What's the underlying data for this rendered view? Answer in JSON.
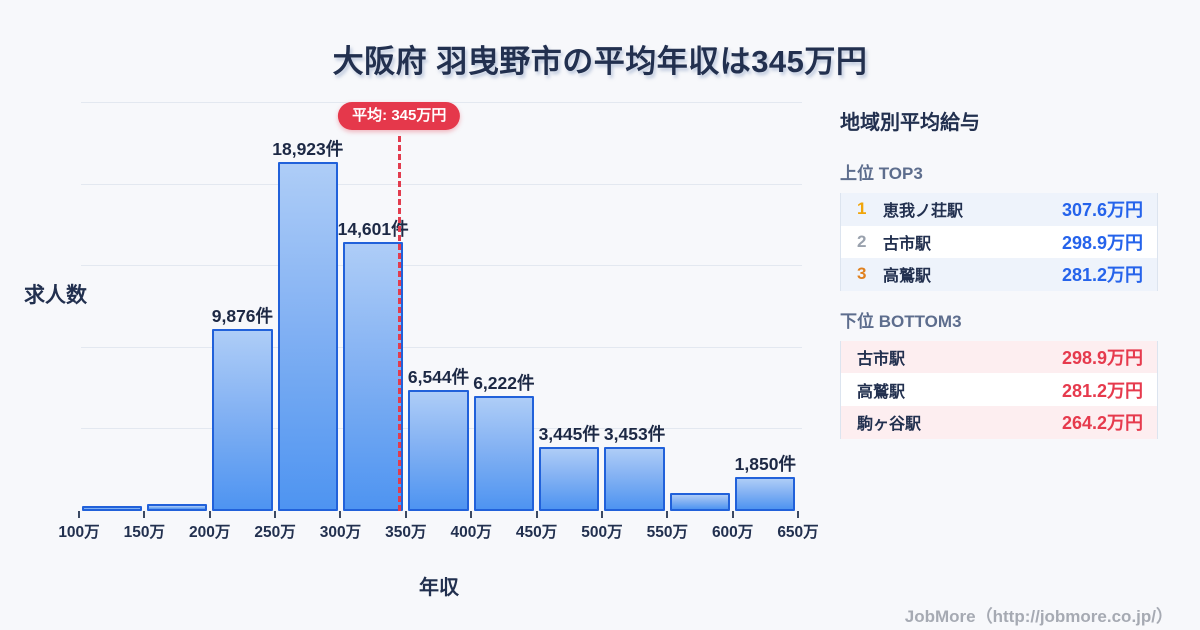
{
  "title": "大阪府 羽曳野市の平均年収は345万円",
  "chart_data": {
    "type": "bar",
    "title": "大阪府 羽曳野市の平均年収は345万円",
    "xlabel": "年収",
    "ylabel": "求人数",
    "unit": "件",
    "x_ticks": [
      "100万",
      "150万",
      "200万",
      "250万",
      "300万",
      "350万",
      "400万",
      "450万",
      "500万",
      "550万",
      "600万",
      "650万"
    ],
    "bins": [
      {
        "range": "100万-150万",
        "value": 250,
        "label": ""
      },
      {
        "range": "150万-200万",
        "value": 400,
        "label": ""
      },
      {
        "range": "200万-250万",
        "value": 9876,
        "label": "9,876件"
      },
      {
        "range": "250万-300万",
        "value": 18923,
        "label": "18,923件"
      },
      {
        "range": "300万-350万",
        "value": 14601,
        "label": "14,601件"
      },
      {
        "range": "350万-400万",
        "value": 6544,
        "label": "6,544件"
      },
      {
        "range": "400万-450万",
        "value": 6222,
        "label": "6,222件"
      },
      {
        "range": "450万-500万",
        "value": 3445,
        "label": "3,445件"
      },
      {
        "range": "500万-550万",
        "value": 3453,
        "label": "3,453件"
      },
      {
        "range": "550万-600万",
        "value": 1000,
        "label": ""
      },
      {
        "range": "600万-650万",
        "value": 1850,
        "label": "1,850件"
      }
    ],
    "average_line": {
      "label": "平均: 345万円",
      "x_value": 345
    },
    "grid": true,
    "legend": "none"
  },
  "sidebar": {
    "header": "地域別平均給与",
    "top_section": {
      "label": "上位 TOP3",
      "rows": [
        {
          "rank": "1",
          "name": "恵我ノ荘駅",
          "value": "307.6万円"
        },
        {
          "rank": "2",
          "name": "古市駅",
          "value": "298.9万円"
        },
        {
          "rank": "3",
          "name": "高鷲駅",
          "value": "281.2万円"
        }
      ]
    },
    "bottom_section": {
      "label": "下位 BOTTOM3",
      "rows": [
        {
          "name": "古市駅",
          "value": "298.9万円"
        },
        {
          "name": "高鷲駅",
          "value": "281.2万円"
        },
        {
          "name": "駒ヶ谷駅",
          "value": "264.2万円"
        }
      ]
    }
  },
  "footer": {
    "credit": "JobMore（http://jobmore.co.jp/）"
  },
  "colors": {
    "background": "#f7f8fb",
    "title_text": "#22304f",
    "bar_border": "#2161da",
    "bar_fill_top": "#aecdf7",
    "bar_fill_bottom": "#4e94f1",
    "gridline": "#e3e8f0",
    "average_red": "#e5384b",
    "top_value_blue": "#2563eb",
    "bottom_value_red": "#e63a4d",
    "rank1_gold": "#f0a50a",
    "rank2_gray": "#99a1ad",
    "rank3_orange": "#e0811f",
    "row_blue_bg": "#eef3fb",
    "row_pink_bg": "#fdeef0",
    "section_label": "#5d6d8d",
    "footer_text": "#a6aab3"
  }
}
